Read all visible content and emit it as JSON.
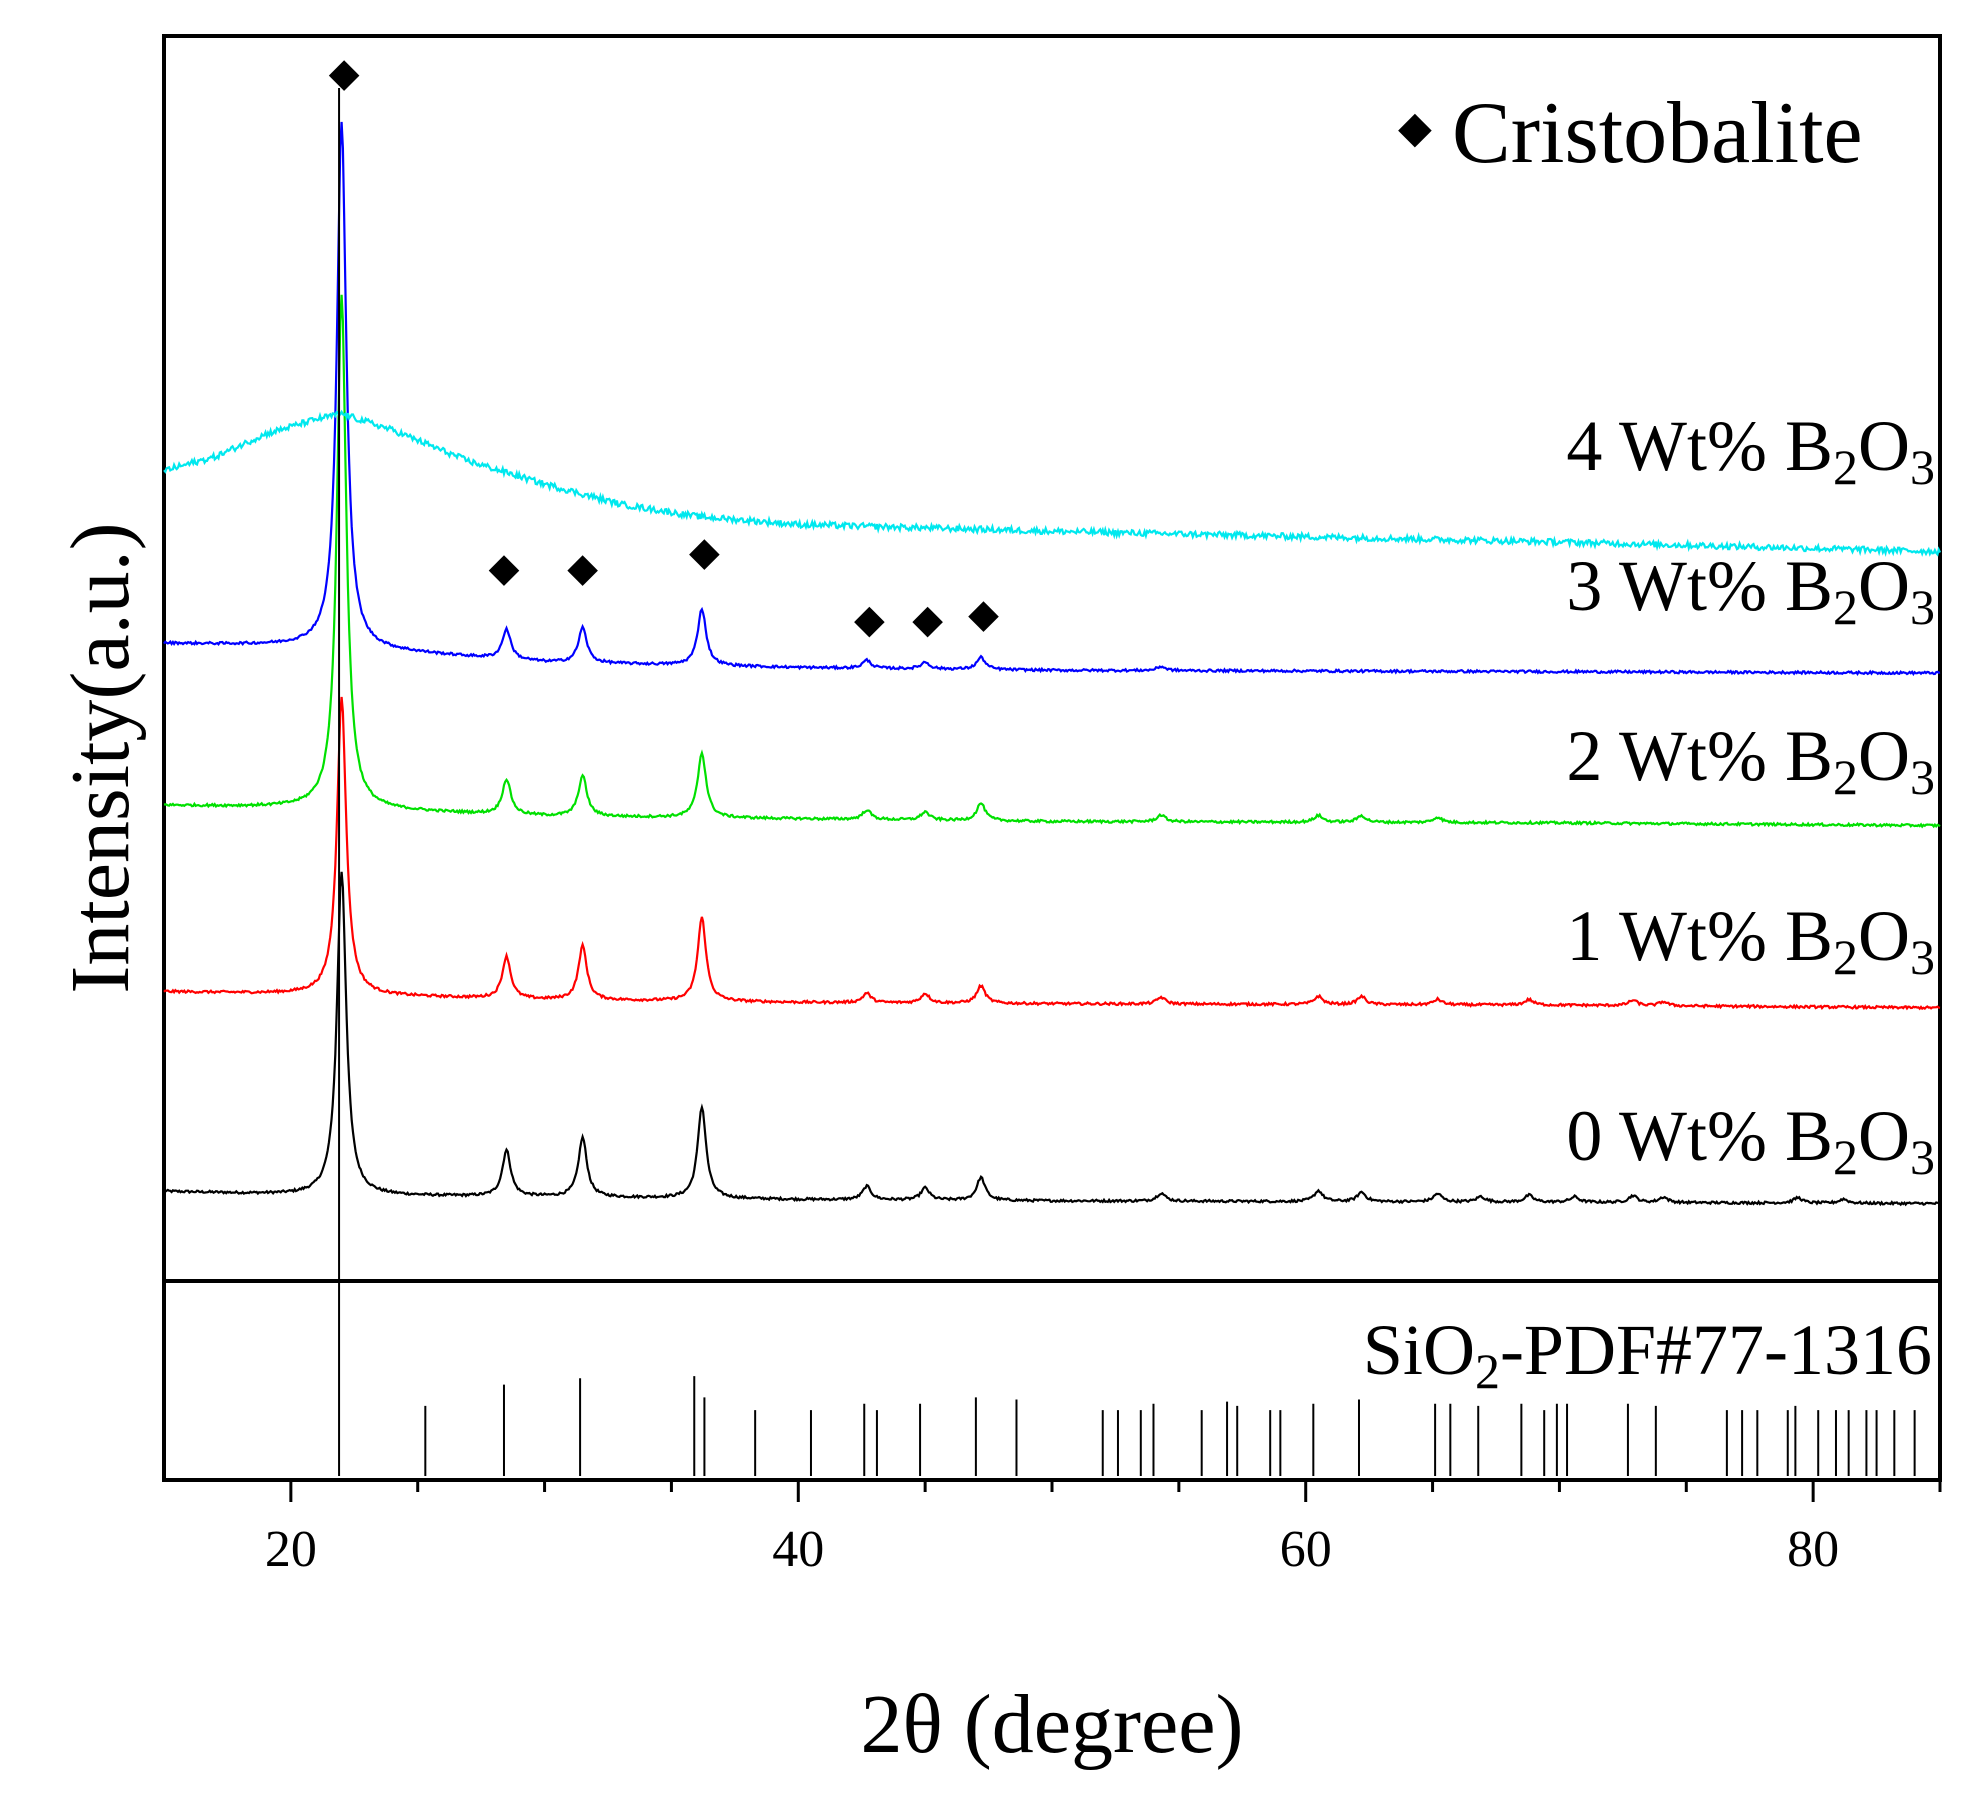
{
  "chart_data": {
    "type": "line",
    "title": "",
    "xlabel": "2θ (degree)",
    "ylabel": "Intensity(a.u.)",
    "xlim": [
      15,
      85
    ],
    "xticks": [
      20,
      40,
      60,
      80
    ],
    "grid": false,
    "legend": {
      "symbol": "◆",
      "label": "Cristobalite",
      "position": "top-right"
    },
    "series": [
      {
        "name": "0 Wt% B2O3",
        "label_parts": [
          "0 Wt% B",
          "2",
          "O",
          "3"
        ],
        "color": "#000000",
        "baseline": [
          [
            15,
            0.36
          ],
          [
            21,
            0.33
          ],
          [
            30,
            0.32
          ],
          [
            40,
            0.3
          ],
          [
            50,
            0.29
          ],
          [
            70,
            0.28
          ],
          [
            85,
            0.27
          ]
        ],
        "peaks": [
          [
            22.0,
            2.4
          ],
          [
            28.5,
            0.34
          ],
          [
            31.5,
            0.44
          ],
          [
            36.2,
            0.68
          ],
          [
            42.7,
            0.1
          ],
          [
            45.0,
            0.09
          ],
          [
            47.2,
            0.17
          ],
          [
            54.3,
            0.06
          ],
          [
            60.5,
            0.08
          ],
          [
            62.2,
            0.07
          ],
          [
            65.2,
            0.06
          ],
          [
            66.9,
            0.04
          ],
          [
            68.8,
            0.05
          ],
          [
            70.6,
            0.04
          ],
          [
            72.9,
            0.05
          ],
          [
            74.1,
            0.04
          ],
          [
            79.4,
            0.04
          ],
          [
            81.2,
            0.03
          ]
        ]
      },
      {
        "name": "1 Wt% B2O3",
        "label_parts": [
          "1 Wt% B",
          "2",
          "O",
          "3"
        ],
        "color": "#ff0000",
        "baseline": [
          [
            15,
            1.84
          ],
          [
            21,
            1.82
          ],
          [
            30,
            1.78
          ],
          [
            40,
            1.76
          ],
          [
            50,
            1.75
          ],
          [
            70,
            1.74
          ],
          [
            85,
            1.72
          ]
        ],
        "peaks": [
          [
            22.0,
            2.2
          ],
          [
            28.5,
            0.31
          ],
          [
            31.5,
            0.4
          ],
          [
            36.2,
            0.62
          ],
          [
            42.7,
            0.07
          ],
          [
            45.0,
            0.07
          ],
          [
            47.2,
            0.13
          ],
          [
            54.3,
            0.05
          ],
          [
            60.5,
            0.06
          ],
          [
            62.2,
            0.06
          ],
          [
            65.2,
            0.04
          ],
          [
            68.8,
            0.04
          ],
          [
            72.9,
            0.04
          ],
          [
            74.1,
            0.03
          ]
        ]
      },
      {
        "name": "2 Wt% B2O3",
        "label_parts": [
          "2 Wt% B",
          "2",
          "O",
          "3"
        ],
        "color": "#00e000",
        "baseline": [
          [
            15,
            3.22
          ],
          [
            21,
            3.2
          ],
          [
            30,
            3.14
          ],
          [
            40,
            3.12
          ],
          [
            50,
            3.1
          ],
          [
            70,
            3.09
          ],
          [
            85,
            3.07
          ]
        ],
        "peaks": [
          [
            22.0,
            3.8
          ],
          [
            28.5,
            0.26
          ],
          [
            31.5,
            0.3
          ],
          [
            36.2,
            0.48
          ],
          [
            42.7,
            0.07
          ],
          [
            45.0,
            0.06
          ],
          [
            47.2,
            0.13
          ],
          [
            54.3,
            0.05
          ],
          [
            60.5,
            0.05
          ],
          [
            62.2,
            0.05
          ],
          [
            65.2,
            0.04
          ]
        ]
      },
      {
        "name": "3 Wt% B2O3",
        "label_parts": [
          "3 Wt% B",
          "2",
          "O",
          "3"
        ],
        "color": "#0000ff",
        "baseline": [
          [
            15,
            4.42
          ],
          [
            21,
            4.4
          ],
          [
            30,
            4.28
          ],
          [
            40,
            4.24
          ],
          [
            50,
            4.22
          ],
          [
            70,
            4.21
          ],
          [
            85,
            4.2
          ]
        ],
        "peaks": [
          [
            22.0,
            3.9
          ],
          [
            28.5,
            0.22
          ],
          [
            31.5,
            0.26
          ],
          [
            36.2,
            0.42
          ],
          [
            42.7,
            0.06
          ],
          [
            45.0,
            0.05
          ],
          [
            47.2,
            0.09
          ],
          [
            54.3,
            0.03
          ]
        ]
      },
      {
        "name": "4 Wt% B2O3",
        "label_parts": [
          "4 Wt% B",
          "2",
          "O",
          "3"
        ],
        "color": "#00e8ee",
        "baseline": [
          [
            15,
            5.7
          ],
          [
            17,
            5.8
          ],
          [
            19,
            5.97
          ],
          [
            21,
            6.08
          ],
          [
            22,
            6.12
          ],
          [
            24,
            6.0
          ],
          [
            27,
            5.77
          ],
          [
            30,
            5.6
          ],
          [
            33,
            5.45
          ],
          [
            36,
            5.36
          ],
          [
            40,
            5.3
          ],
          [
            50,
            5.25
          ],
          [
            60,
            5.21
          ],
          [
            70,
            5.17
          ],
          [
            85,
            5.1
          ]
        ]
      }
    ],
    "reference_pattern": {
      "label_parts": [
        "SiO",
        "2",
        "-PDF#77-1316"
      ],
      "lines": [
        [
          21.9,
          1.0
        ],
        [
          25.3,
          0.33
        ],
        [
          28.4,
          0.43
        ],
        [
          31.4,
          0.46
        ],
        [
          35.9,
          0.47
        ],
        [
          36.3,
          0.37
        ],
        [
          38.3,
          0.31
        ],
        [
          40.5,
          0.31
        ],
        [
          42.6,
          0.34
        ],
        [
          43.1,
          0.31
        ],
        [
          44.8,
          0.34
        ],
        [
          47.0,
          0.37
        ],
        [
          48.6,
          0.36
        ],
        [
          52.0,
          0.31
        ],
        [
          52.6,
          0.31
        ],
        [
          53.5,
          0.31
        ],
        [
          54.0,
          0.34
        ],
        [
          55.9,
          0.31
        ],
        [
          56.9,
          0.35
        ],
        [
          57.3,
          0.33
        ],
        [
          58.6,
          0.31
        ],
        [
          59.0,
          0.31
        ],
        [
          60.3,
          0.34
        ],
        [
          62.1,
          0.36
        ],
        [
          65.1,
          0.34
        ],
        [
          65.7,
          0.34
        ],
        [
          66.8,
          0.33
        ],
        [
          68.5,
          0.34
        ],
        [
          69.4,
          0.31
        ],
        [
          69.9,
          0.34
        ],
        [
          70.3,
          0.34
        ],
        [
          72.7,
          0.34
        ],
        [
          73.8,
          0.33
        ],
        [
          76.6,
          0.31
        ],
        [
          77.2,
          0.31
        ],
        [
          77.8,
          0.31
        ],
        [
          79.0,
          0.31
        ],
        [
          79.3,
          0.33
        ],
        [
          80.2,
          0.31
        ],
        [
          80.9,
          0.31
        ],
        [
          81.4,
          0.31
        ],
        [
          82.1,
          0.31
        ],
        [
          82.5,
          0.31
        ],
        [
          83.2,
          0.31
        ],
        [
          84.0,
          0.31
        ]
      ]
    },
    "markers": [
      {
        "symbol": "◆",
        "x": 22.1,
        "y": 8.55
      },
      {
        "symbol": "◆",
        "x": 28.4,
        "y": 4.88
      },
      {
        "symbol": "◆",
        "x": 31.5,
        "y": 4.88
      },
      {
        "symbol": "◆",
        "x": 36.3,
        "y": 5.0
      },
      {
        "symbol": "◆",
        "x": 42.8,
        "y": 4.5
      },
      {
        "symbol": "◆",
        "x": 45.1,
        "y": 4.5
      },
      {
        "symbol": "◆",
        "x": 47.3,
        "y": 4.54
      }
    ]
  }
}
